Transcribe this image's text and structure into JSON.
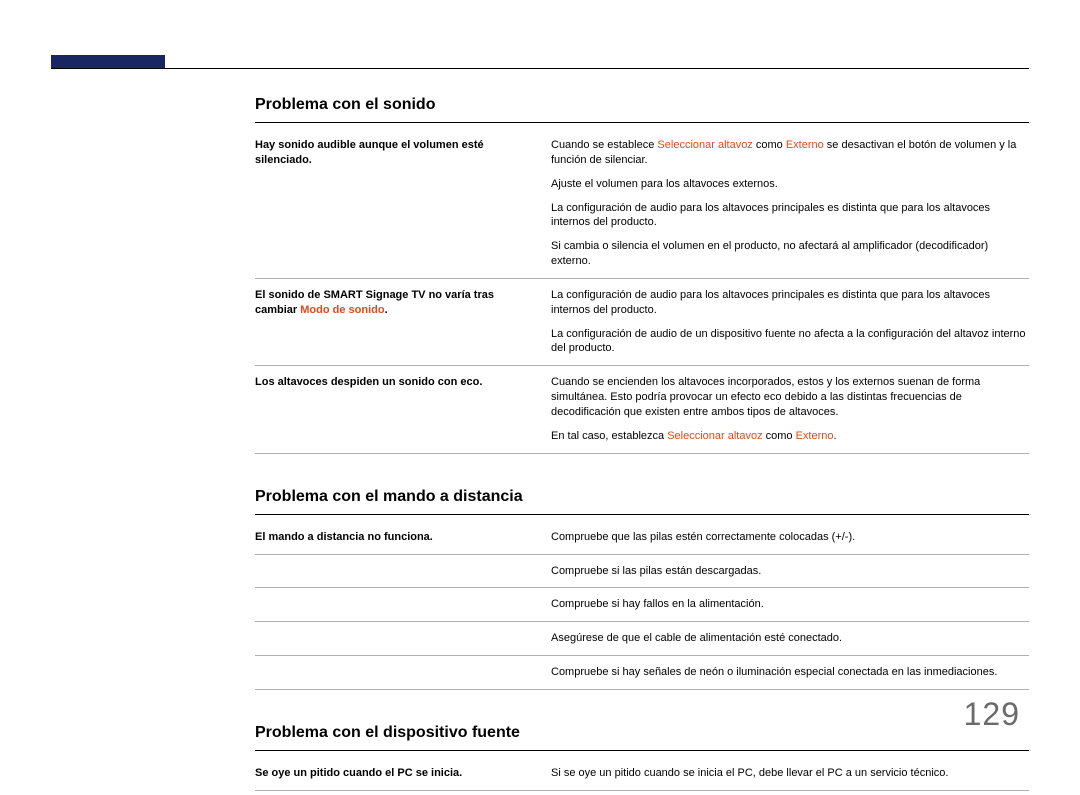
{
  "page_number": "129",
  "accent_color": "#1a2564",
  "highlight_color": "#e04a1a",
  "sections": [
    {
      "title": "Problema con el sonido",
      "rows": [
        {
          "label_parts": [
            {
              "text": "Hay sonido audible aunque el volumen esté silenciado.",
              "hl": false
            }
          ],
          "values": [
            [
              {
                "text": "Cuando se establece ",
                "hl": false
              },
              {
                "text": "Seleccionar altavoz",
                "hl": true
              },
              {
                "text": " como ",
                "hl": false
              },
              {
                "text": "Externo",
                "hl": true
              },
              {
                "text": " se desactivan el botón de volumen y la función de silenciar.",
                "hl": false
              }
            ],
            [
              {
                "text": "Ajuste el volumen para los altavoces externos.",
                "hl": false
              }
            ],
            [
              {
                "text": "La configuración de audio para los altavoces principales es distinta que para los altavoces internos del producto.",
                "hl": false
              }
            ],
            [
              {
                "text": "Si cambia o silencia el volumen en el producto, no afectará al amplificador (decodificador) externo.",
                "hl": false
              }
            ]
          ]
        },
        {
          "label_parts": [
            {
              "text": "El sonido de SMART Signage TV no varía tras cambiar ",
              "hl": false
            },
            {
              "text": "Modo de sonido",
              "hl": true
            },
            {
              "text": ".",
              "hl": false
            }
          ],
          "values": [
            [
              {
                "text": "La configuración de audio para los altavoces principales es distinta que para los altavoces internos del producto.",
                "hl": false
              }
            ],
            [
              {
                "text": "La configuración de audio de un dispositivo fuente no afecta a la configuración del altavoz interno del producto.",
                "hl": false
              }
            ]
          ]
        },
        {
          "label_parts": [
            {
              "text": "Los altavoces despiden un sonido con eco.",
              "hl": false
            }
          ],
          "values": [
            [
              {
                "text": "Cuando se encienden los altavoces incorporados, estos y los externos suenan de forma simultánea. Esto podría provocar un efecto eco debido a las distintas frecuencias de decodificación que existen entre ambos tipos de altavoces.",
                "hl": false
              }
            ],
            [
              {
                "text": "En tal caso, establezca ",
                "hl": false
              },
              {
                "text": "Seleccionar altavoz",
                "hl": true
              },
              {
                "text": " como ",
                "hl": false
              },
              {
                "text": "Externo",
                "hl": true
              },
              {
                "text": ".",
                "hl": false
              }
            ]
          ]
        }
      ]
    },
    {
      "title": "Problema con el mando a distancia",
      "rows": [
        {
          "label_parts": [
            {
              "text": "El mando a distancia no funciona.",
              "hl": false
            }
          ],
          "values": [
            [
              {
                "text": "Compruebe que las pilas estén correctamente colocadas (+/-).",
                "hl": false
              }
            ]
          ]
        },
        {
          "label_parts": [],
          "values": [
            [
              {
                "text": "Compruebe si las pilas están descargadas.",
                "hl": false
              }
            ]
          ]
        },
        {
          "label_parts": [],
          "values": [
            [
              {
                "text": "Compruebe si hay fallos en la alimentación.",
                "hl": false
              }
            ]
          ]
        },
        {
          "label_parts": [],
          "values": [
            [
              {
                "text": "Asegúrese de que el cable de alimentación esté conectado.",
                "hl": false
              }
            ]
          ]
        },
        {
          "label_parts": [],
          "values": [
            [
              {
                "text": "Compruebe si hay señales de neón o iluminación especial conectada en las inmediaciones.",
                "hl": false
              }
            ]
          ]
        }
      ]
    },
    {
      "title": "Problema con el dispositivo fuente",
      "rows": [
        {
          "label_parts": [
            {
              "text": "Se oye un pitido cuando el PC se inicia.",
              "hl": false
            }
          ],
          "values": [
            [
              {
                "text": "Si se oye un pitido cuando se inicia el PC, debe llevar el PC a un servicio técnico.",
                "hl": false
              }
            ]
          ]
        }
      ]
    }
  ]
}
